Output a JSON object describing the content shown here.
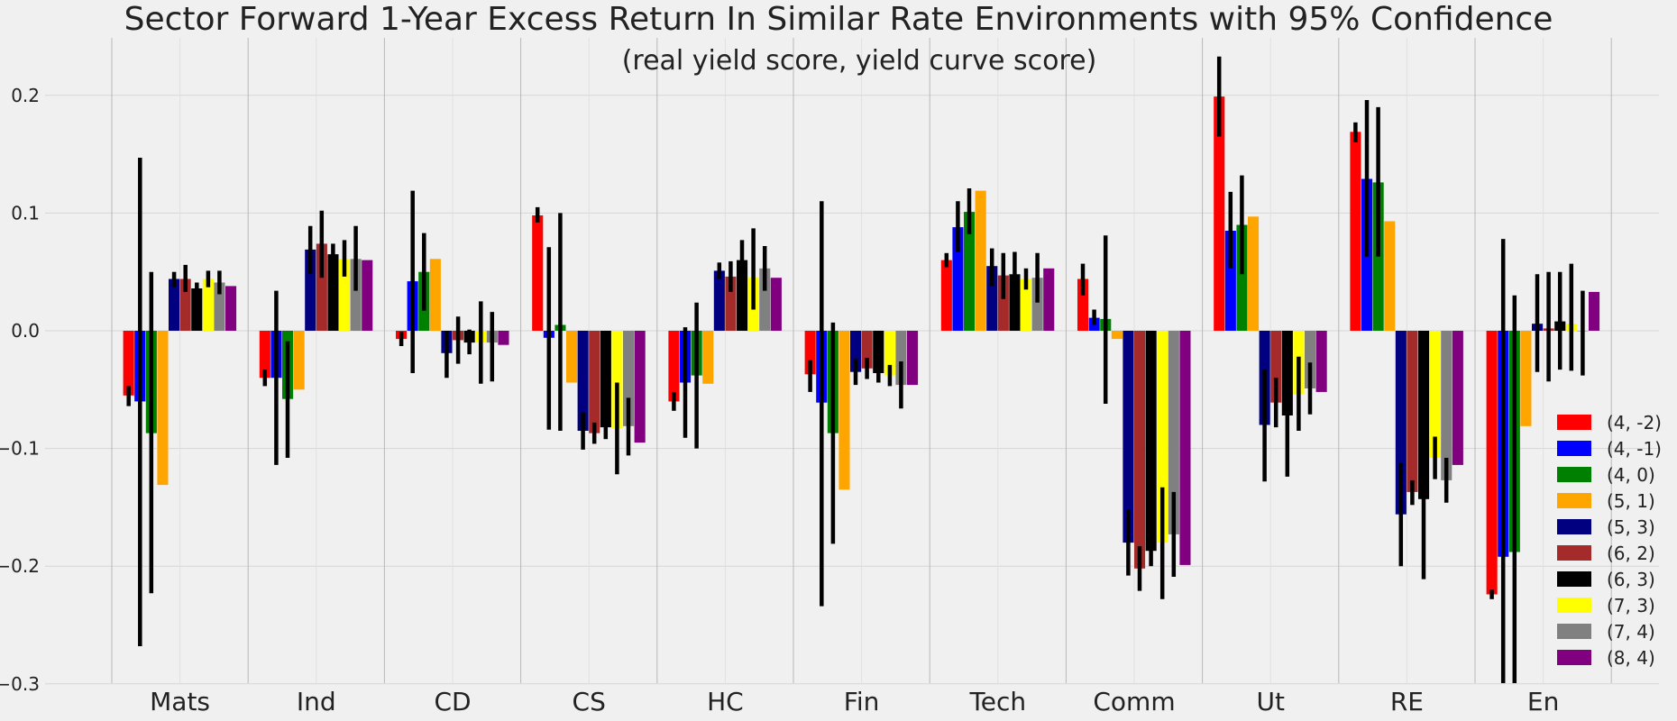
{
  "chart_data": {
    "type": "bar",
    "title": "Sector Forward 1-Year Excess Return In Similar Rate Environments with 95% Confidence",
    "subtitle": "(real yield score, yield curve score)",
    "xlabel": "",
    "ylabel": "",
    "ylim": [
      -0.3,
      0.25
    ],
    "yticks": [
      0.2,
      0.1,
      0.0,
      -0.1,
      -0.2,
      -0.3
    ],
    "ytick_labels": [
      "0.2",
      "0.1",
      "0.0",
      "−0.1",
      "−0.2",
      "−0.3"
    ],
    "grid": true,
    "legend_position": "bottom-right",
    "categories": [
      "Mats",
      "Ind",
      "CD",
      "CS",
      "HC",
      "Fin",
      "Tech",
      "Comm",
      "Ut",
      "RE",
      "En"
    ],
    "series": [
      {
        "name": "(4, -2)",
        "color": "#ff0000",
        "values": [
          -0.055,
          -0.04,
          -0.007,
          0.098,
          -0.06,
          -0.037,
          0.06,
          0.044,
          0.199,
          0.169,
          -0.224
        ],
        "err_low": [
          -0.064,
          -0.047,
          -0.013,
          0.092,
          -0.068,
          -0.052,
          0.054,
          0.03,
          0.165,
          0.16,
          -0.228
        ],
        "err_high": [
          -0.047,
          -0.033,
          -0.001,
          0.105,
          -0.052,
          -0.025,
          0.066,
          0.057,
          0.233,
          0.177,
          -0.22
        ]
      },
      {
        "name": "(4, -1)",
        "color": "#0000ff",
        "values": [
          -0.06,
          -0.04,
          0.042,
          -0.006,
          -0.044,
          -0.061,
          0.088,
          0.011,
          0.085,
          0.129,
          -0.192
        ],
        "err_low": [
          -0.268,
          -0.114,
          -0.036,
          -0.084,
          -0.091,
          -0.234,
          0.067,
          0.005,
          0.053,
          0.063,
          -0.3
        ],
        "err_high": [
          0.147,
          0.034,
          0.119,
          0.071,
          0.003,
          0.11,
          0.11,
          0.018,
          0.118,
          0.196,
          0.078
        ]
      },
      {
        "name": "(4, 0)",
        "color": "#008000",
        "values": [
          -0.087,
          -0.058,
          0.05,
          0.005,
          -0.038,
          -0.087,
          0.101,
          0.01,
          0.09,
          0.126,
          -0.188
        ],
        "err_low": [
          -0.223,
          -0.108,
          0.017,
          -0.085,
          -0.1,
          -0.181,
          0.082,
          -0.062,
          0.048,
          0.063,
          -0.3
        ],
        "err_high": [
          0.05,
          -0.009,
          0.083,
          0.1,
          0.024,
          0.007,
          0.121,
          0.081,
          0.132,
          0.19,
          0.03
        ]
      },
      {
        "name": "(5, 1)",
        "color": "#ffa500",
        "values": [
          -0.131,
          -0.05,
          0.061,
          -0.044,
          -0.045,
          -0.135,
          0.119,
          -0.007,
          0.097,
          0.093,
          -0.081
        ],
        "err_low": [
          -0.131,
          -0.05,
          0.061,
          -0.044,
          -0.045,
          -0.135,
          0.119,
          -0.007,
          0.097,
          0.093,
          -0.081
        ],
        "err_high": [
          -0.131,
          -0.05,
          0.061,
          -0.044,
          -0.045,
          -0.135,
          0.119,
          -0.007,
          0.097,
          0.093,
          -0.081
        ]
      },
      {
        "name": "(5, 3)",
        "color": "#000080",
        "values": [
          0.044,
          0.069,
          -0.019,
          -0.085,
          0.051,
          -0.035,
          0.055,
          -0.18,
          -0.08,
          -0.156,
          0.006
        ],
        "err_low": [
          0.037,
          0.048,
          -0.04,
          -0.101,
          0.044,
          -0.046,
          0.038,
          -0.208,
          -0.128,
          -0.2,
          -0.035
        ],
        "err_high": [
          0.05,
          0.089,
          0.0,
          -0.069,
          0.058,
          -0.024,
          0.07,
          -0.152,
          -0.033,
          -0.112,
          0.048
        ]
      },
      {
        "name": "(6, 2)",
        "color": "#a52a2a",
        "values": [
          0.044,
          0.074,
          -0.008,
          -0.087,
          0.046,
          -0.032,
          0.047,
          -0.202,
          -0.061,
          -0.137,
          0.002
        ],
        "err_low": [
          0.033,
          0.045,
          -0.028,
          -0.096,
          0.033,
          -0.041,
          0.027,
          -0.221,
          -0.082,
          -0.148,
          -0.043
        ],
        "err_high": [
          0.056,
          0.102,
          0.012,
          -0.078,
          0.059,
          -0.023,
          0.066,
          -0.183,
          -0.04,
          -0.127,
          0.05
        ]
      },
      {
        "name": "(6, 3)",
        "color": "#000000",
        "values": [
          0.036,
          0.065,
          -0.01,
          -0.082,
          0.06,
          -0.036,
          0.048,
          -0.187,
          -0.072,
          -0.143,
          0.008
        ],
        "err_low": [
          0.03,
          0.056,
          -0.02,
          -0.092,
          0.042,
          -0.044,
          0.03,
          -0.2,
          -0.124,
          -0.211,
          -0.033
        ],
        "err_high": [
          0.041,
          0.074,
          0.001,
          -0.072,
          0.077,
          -0.028,
          0.067,
          -0.174,
          -0.021,
          -0.074,
          0.05
        ]
      },
      {
        "name": "(7, 3)",
        "color": "#ffff00",
        "values": [
          0.044,
          0.061,
          -0.01,
          -0.083,
          0.045,
          -0.038,
          0.044,
          -0.18,
          -0.054,
          -0.108,
          0.006
        ],
        "err_low": [
          0.037,
          0.046,
          -0.045,
          -0.122,
          0.018,
          -0.047,
          0.035,
          -0.228,
          -0.085,
          -0.126,
          -0.034
        ],
        "err_high": [
          0.051,
          0.077,
          0.025,
          -0.044,
          0.087,
          -0.029,
          0.053,
          -0.133,
          -0.022,
          -0.09,
          0.057
        ]
      },
      {
        "name": "(7, 4)",
        "color": "#808080",
        "values": [
          0.041,
          0.061,
          -0.01,
          -0.081,
          0.053,
          -0.046,
          0.045,
          -0.173,
          -0.049,
          -0.127,
          0.0
        ],
        "err_low": [
          0.031,
          0.034,
          -0.043,
          -0.106,
          0.034,
          -0.066,
          0.024,
          -0.209,
          -0.071,
          -0.146,
          -0.038
        ],
        "err_high": [
          0.051,
          0.089,
          0.016,
          -0.057,
          0.072,
          -0.026,
          0.066,
          -0.137,
          -0.027,
          -0.108,
          0.034
        ]
      },
      {
        "name": "(8, 4)",
        "color": "#800080",
        "values": [
          0.038,
          0.06,
          -0.012,
          -0.095,
          0.045,
          -0.046,
          0.053,
          -0.199,
          -0.052,
          -0.114,
          0.033
        ],
        "err_low": [
          0.038,
          0.06,
          -0.012,
          -0.095,
          0.045,
          -0.046,
          0.053,
          -0.199,
          -0.052,
          -0.114,
          0.033
        ],
        "err_high": [
          0.038,
          0.06,
          -0.012,
          -0.095,
          0.045,
          -0.046,
          0.053,
          -0.199,
          -0.052,
          -0.114,
          0.033
        ]
      }
    ]
  }
}
